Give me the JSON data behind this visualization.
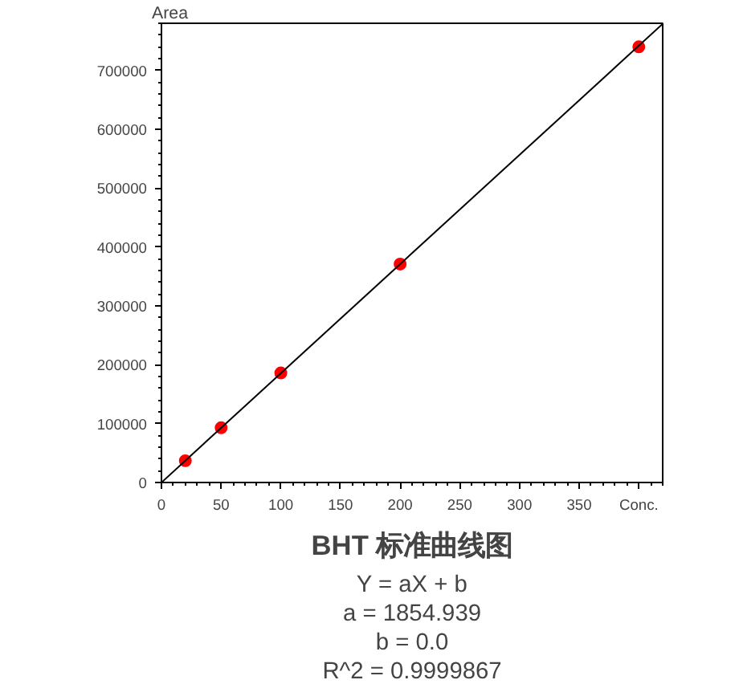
{
  "chart_data": {
    "type": "scatter",
    "title": "BHT 标准曲线图",
    "ylabel": "Area",
    "annotations": [
      "Y = aX + b",
      "a = 1854.939",
      "b = 0.0",
      "R^2 = 0.9999867"
    ],
    "x": [
      20,
      50,
      100,
      200,
      400
    ],
    "series": [
      {
        "color": "#ff0000",
        "marker": "circle",
        "values": [
          37000,
          93000,
          186000,
          371000,
          740000
        ]
      },
      {
        "type": "line",
        "color": "#000000",
        "marker": "none",
        "x": [
          0,
          420
        ],
        "values": [
          0,
          779000
        ]
      }
    ],
    "xlim": [
      0,
      420
    ],
    "ylim": [
      0,
      780000
    ],
    "xticks": [
      0,
      50,
      100,
      150,
      200,
      250,
      300,
      350,
      {
        "value": 400,
        "label": "Conc."
      }
    ],
    "yticks": [
      0,
      100000,
      200000,
      300000,
      400000,
      500000,
      600000,
      700000
    ],
    "grid": false
  }
}
